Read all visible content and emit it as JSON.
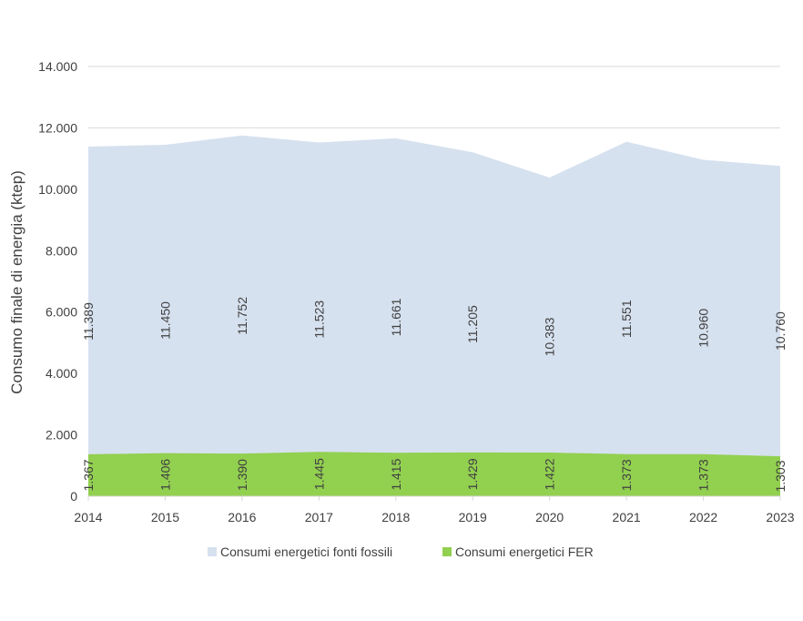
{
  "chart_data": {
    "type": "area",
    "title": "",
    "xlabel": "",
    "ylabel": "Consumo finale di energia (ktep)",
    "categories": [
      "2014",
      "2015",
      "2016",
      "2017",
      "2018",
      "2019",
      "2020",
      "2021",
      "2022",
      "2023"
    ],
    "ylim": [
      0,
      14000
    ],
    "yticks": [
      0,
      2000,
      4000,
      6000,
      8000,
      10000,
      12000,
      14000
    ],
    "ytick_labels": [
      "0",
      "2.000",
      "4.000",
      "6.000",
      "8.000",
      "10.000",
      "12.000",
      "14.000"
    ],
    "grid": true,
    "stacked": false,
    "legend_position": "bottom",
    "series": [
      {
        "name": "Consumi energetici fonti fossili",
        "color": "#d6e1ef",
        "values": [
          11389,
          11450,
          11752,
          11523,
          11661,
          11205,
          10383,
          11551,
          10960,
          10760
        ],
        "labels": [
          "11.389",
          "11.450",
          "11.752",
          "11.523",
          "11.661",
          "11.205",
          "10.383",
          "11.551",
          "10.960",
          "10.760"
        ]
      },
      {
        "name": "Consumi energetici FER",
        "color": "#92d050",
        "values": [
          1367,
          1406,
          1390,
          1445,
          1415,
          1429,
          1422,
          1373,
          1373,
          1303
        ],
        "labels": [
          "1.367",
          "1.406",
          "1.390",
          "1.445",
          "1.415",
          "1.429",
          "1.422",
          "1.373",
          "1.373",
          "1.303"
        ]
      }
    ]
  }
}
